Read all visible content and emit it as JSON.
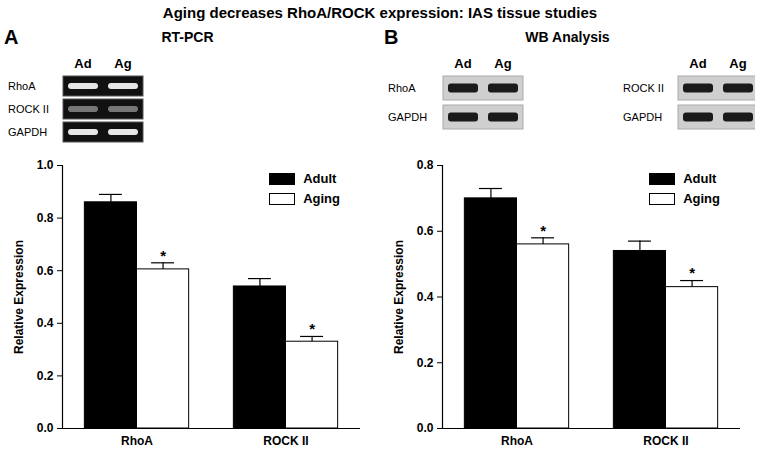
{
  "title": "Aging decreases RhoA/ROCK expression: IAS tissue studies",
  "chart_data": [
    {
      "type": "bar",
      "panel": "A",
      "title": "RT-PCR",
      "blots": [
        {
          "lanes": [
            "Ad",
            "Ag"
          ],
          "rows": [
            "RhoA",
            "ROCK II",
            "GAPDH"
          ]
        }
      ],
      "categories": [
        "RhoA",
        "ROCK II"
      ],
      "series": [
        {
          "name": "Adult",
          "color": "#000000",
          "values": [
            0.86,
            0.54
          ],
          "errors": [
            0.03,
            0.03
          ]
        },
        {
          "name": "Aging",
          "color": "#ffffff",
          "values": [
            0.605,
            0.33
          ],
          "errors": [
            0.025,
            0.02
          ],
          "annotations": [
            "*",
            "*"
          ]
        }
      ],
      "ylabel": "Relative Expression",
      "ylim": [
        0,
        1
      ],
      "yticks": [
        {
          "value": 0,
          "label": "0.0"
        },
        0.2,
        0.4,
        0.6,
        0.8,
        {
          "value": 1,
          "label": "1.0"
        }
      ],
      "legend": "top-right",
      "grid": false
    },
    {
      "type": "bar",
      "panel": "B",
      "title": "WB Analysis",
      "blots": [
        {
          "lanes": [
            "Ad",
            "Ag"
          ],
          "rows": [
            "RhoA",
            "GAPDH"
          ]
        },
        {
          "lanes": [
            "Ad",
            "Ag"
          ],
          "rows": [
            "ROCK II",
            "GAPDH"
          ]
        }
      ],
      "categories": [
        "RhoA",
        "ROCK II"
      ],
      "series": [
        {
          "name": "Adult",
          "color": "#000000",
          "values": [
            0.7,
            0.54
          ],
          "errors": [
            0.03,
            0.03
          ]
        },
        {
          "name": "Aging",
          "color": "#ffffff",
          "values": [
            0.56,
            0.43
          ],
          "errors": [
            0.02,
            0.02
          ],
          "annotations": [
            "*",
            "*"
          ]
        }
      ],
      "ylabel": "Relative Expression",
      "ylim": [
        0,
        0.8
      ],
      "yticks": [
        {
          "value": 0,
          "label": "0.0"
        },
        0.2,
        0.4,
        0.6,
        0.8
      ],
      "legend": "top-right",
      "grid": false
    }
  ]
}
